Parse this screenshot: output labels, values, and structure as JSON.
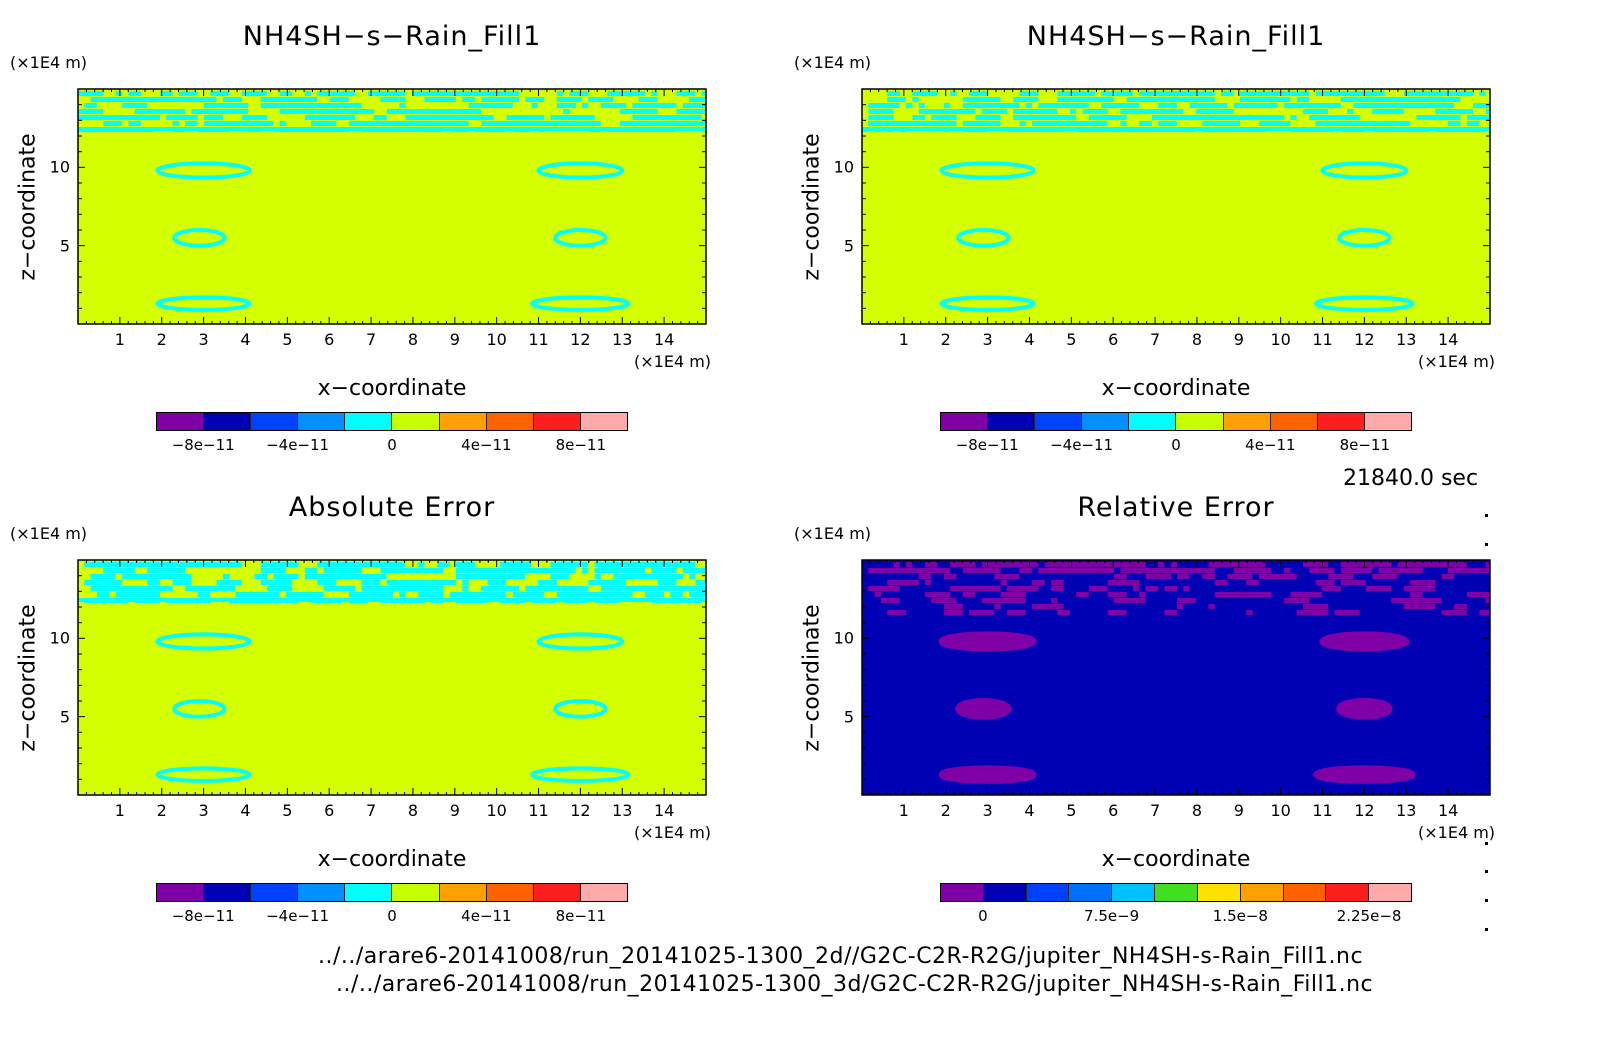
{
  "time_label": "21840.0 sec",
  "files": [
    "../../arare6-20141008/run_20141025-1300_2d//G2C-C2R-R2G/jupiter_NH4SH-s-Rain_Fill1.nc",
    "../../arare6-20141008/run_20141025-1300_3d/G2C-C2R-R2G/jupiter_NH4SH-s-Rain_Fill1.nc"
  ],
  "colors": {
    "background_field": "#d4ff00",
    "cyan": "#00ffff",
    "relative_background": "#0000b4",
    "purple": "#8000a8"
  },
  "chart_data": [
    {
      "type": "heatmap",
      "title": "NH4SH−s−Rain_Fill1",
      "xlabel": "x−coordinate",
      "ylabel": "z−coordinate",
      "x_unit": "(×1E4 m)",
      "y_unit": "(×1E4 m)",
      "x_ticks": [
        "1",
        "2",
        "3",
        "4",
        "5",
        "6",
        "7",
        "8",
        "9",
        "10",
        "11",
        "12",
        "13",
        "14"
      ],
      "y_ticks": [
        "5",
        "10"
      ],
      "xlim": [
        0,
        15
      ],
      "ylim": [
        0,
        15
      ],
      "colorbar": {
        "colors": [
          "#8000a8",
          "#0000b4",
          "#0040ff",
          "#0090ff",
          "#00ffff",
          "#c8ff00",
          "#ffa000",
          "#ff6000",
          "#ff1e1e",
          "#ffaaaa"
        ],
        "tick_labels": [
          "−8e−11",
          "−4e−11",
          "0",
          "4e−11",
          "8e−11"
        ]
      }
    },
    {
      "type": "heatmap",
      "title": "NH4SH−s−Rain_Fill1",
      "xlabel": "x−coordinate",
      "ylabel": "z−coordinate",
      "x_unit": "(×1E4 m)",
      "y_unit": "(×1E4 m)",
      "x_ticks": [
        "1",
        "2",
        "3",
        "4",
        "5",
        "6",
        "7",
        "8",
        "9",
        "10",
        "11",
        "12",
        "13",
        "14"
      ],
      "y_ticks": [
        "5",
        "10"
      ],
      "xlim": [
        0,
        15
      ],
      "ylim": [
        0,
        15
      ],
      "colorbar": {
        "colors": [
          "#8000a8",
          "#0000b4",
          "#0040ff",
          "#0090ff",
          "#00ffff",
          "#c8ff00",
          "#ffa000",
          "#ff6000",
          "#ff1e1e",
          "#ffaaaa"
        ],
        "tick_labels": [
          "−8e−11",
          "−4e−11",
          "0",
          "4e−11",
          "8e−11"
        ]
      }
    },
    {
      "type": "heatmap",
      "title": "Absolute Error",
      "xlabel": "x−coordinate",
      "ylabel": "z−coordinate",
      "x_unit": "(×1E4 m)",
      "y_unit": "(×1E4 m)",
      "x_ticks": [
        "1",
        "2",
        "3",
        "4",
        "5",
        "6",
        "7",
        "8",
        "9",
        "10",
        "11",
        "12",
        "13",
        "14"
      ],
      "y_ticks": [
        "5",
        "10"
      ],
      "xlim": [
        0,
        15
      ],
      "ylim": [
        0,
        15
      ],
      "colorbar": {
        "colors": [
          "#8000a8",
          "#0000b4",
          "#0040ff",
          "#0090ff",
          "#00ffff",
          "#c8ff00",
          "#ffa000",
          "#ff6000",
          "#ff1e1e",
          "#ffaaaa"
        ],
        "tick_labels": [
          "−8e−11",
          "−4e−11",
          "0",
          "4e−11",
          "8e−11"
        ]
      }
    },
    {
      "type": "heatmap",
      "title": "Relative Error",
      "xlabel": "x−coordinate",
      "ylabel": "z−coordinate",
      "x_unit": "(×1E4 m)",
      "y_unit": "(×1E4 m)",
      "x_ticks": [
        "1",
        "2",
        "3",
        "4",
        "5",
        "6",
        "7",
        "8",
        "9",
        "10",
        "11",
        "12",
        "13",
        "14"
      ],
      "y_ticks": [
        "5",
        "10"
      ],
      "xlim": [
        0,
        15
      ],
      "ylim": [
        0,
        15
      ],
      "colorbar": {
        "colors": [
          "#8000a8",
          "#0000b4",
          "#0040ff",
          "#0070ff",
          "#00c0ff",
          "#40e020",
          "#ffe000",
          "#ffa000",
          "#ff6000",
          "#ff1e1e",
          "#ffaaaa"
        ],
        "tick_labels": [
          "0",
          "7.5e−9",
          "1.5e−8",
          "2.25e−8"
        ]
      }
    }
  ]
}
